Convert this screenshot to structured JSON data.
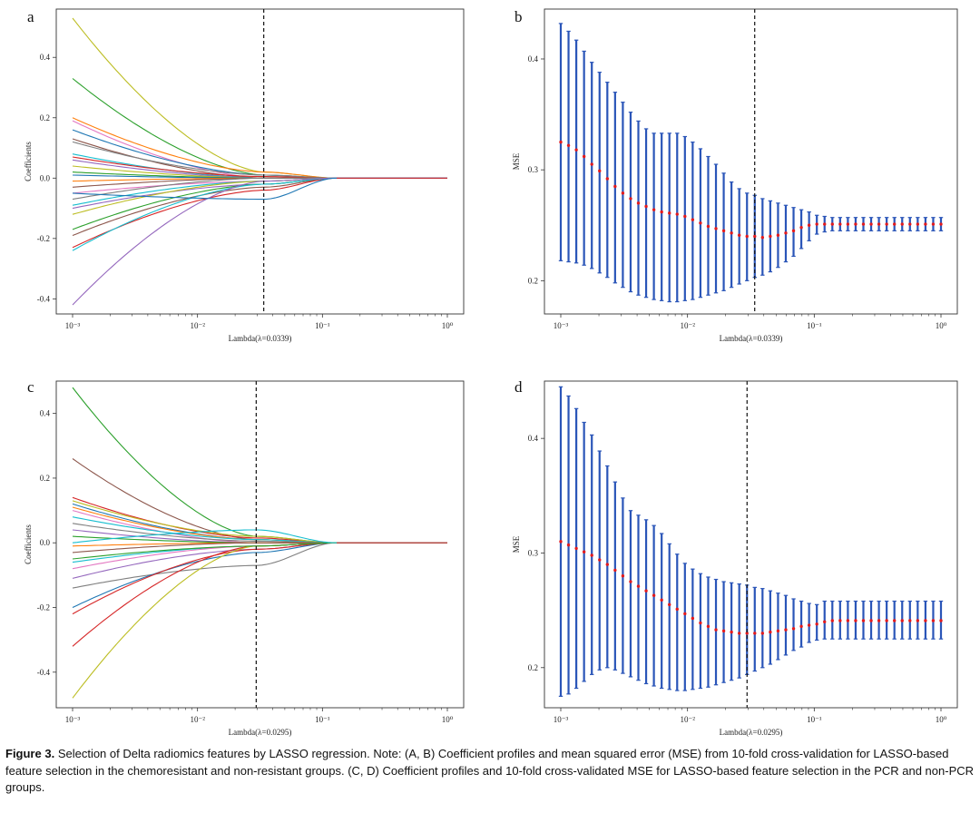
{
  "caption": {
    "label": "Figure 3.",
    "text": "Selection of Delta radiomics features by LASSO regression. Note: (A, B) Coefficient profiles and mean squared error (MSE) from 10-fold cross-validation for LASSO-based feature selection in the chemoresistant and non-resistant groups. (C, D) Coefficient profiles and 10-fold cross-validated MSE for LASSO-based feature selection in the PCR and non-PCR groups."
  },
  "chart_data": [
    {
      "panel": "a",
      "type": "line",
      "xlabel": "Lambda(λ=0.0339)",
      "ylabel": "Coefficients",
      "x_scale": "log",
      "xlim": [
        0.001,
        1
      ],
      "ylim": [
        -0.45,
        0.56
      ],
      "x_ticks": [
        0.001,
        0.01,
        0.1,
        1
      ],
      "x_tick_labels": [
        "10⁻³",
        "10⁻²",
        "10⁻¹",
        "10⁰"
      ],
      "y_ticks": [
        -0.4,
        -0.2,
        0.0,
        0.2,
        0.4
      ],
      "y_tick_labels": [
        "-0.4",
        "-0.2",
        "0.0",
        "0.2",
        "0.4"
      ],
      "selected_lambda": 0.0339,
      "series": [
        {
          "start": 0.53,
          "mid": 0.02,
          "color": "#bcbd22"
        },
        {
          "start": 0.33,
          "mid": 0.01,
          "color": "#2ca02c"
        },
        {
          "start": 0.2,
          "mid": 0.02,
          "color": "#ff7f0e"
        },
        {
          "start": 0.19,
          "mid": 0.0,
          "color": "#e377c2"
        },
        {
          "start": 0.16,
          "mid": 0.01,
          "color": "#1f77b4"
        },
        {
          "start": 0.13,
          "mid": 0.0,
          "color": "#8c564b"
        },
        {
          "start": 0.12,
          "mid": 0.01,
          "color": "#7f7f7f"
        },
        {
          "start": 0.08,
          "mid": 0.0,
          "color": "#17becf"
        },
        {
          "start": 0.07,
          "mid": 0.005,
          "color": "#d62728"
        },
        {
          "start": 0.06,
          "mid": 0.0,
          "color": "#9467bd"
        },
        {
          "start": 0.04,
          "mid": 0.0,
          "color": "#bcbd22"
        },
        {
          "start": 0.02,
          "mid": 0.0,
          "color": "#2ca02c"
        },
        {
          "start": 0.01,
          "mid": 0.0,
          "color": "#1f77b4"
        },
        {
          "start": -0.01,
          "mid": 0.0,
          "color": "#ff7f0e"
        },
        {
          "start": -0.03,
          "mid": 0.0,
          "color": "#8c564b"
        },
        {
          "start": -0.05,
          "mid": -0.01,
          "color": "#e377c2"
        },
        {
          "start": -0.07,
          "mid": 0.0,
          "color": "#7f7f7f"
        },
        {
          "start": -0.09,
          "mid": -0.01,
          "color": "#17becf"
        },
        {
          "start": -0.1,
          "mid": -0.02,
          "color": "#9467bd"
        },
        {
          "start": -0.12,
          "mid": -0.01,
          "color": "#bcbd22"
        },
        {
          "start": -0.17,
          "mid": -0.02,
          "color": "#2ca02c"
        },
        {
          "start": -0.19,
          "mid": -0.03,
          "color": "#8c564b"
        },
        {
          "start": -0.23,
          "mid": -0.04,
          "color": "#d62728"
        },
        {
          "start": -0.24,
          "mid": -0.02,
          "color": "#17becf"
        },
        {
          "start": -0.42,
          "mid": -0.01,
          "color": "#9467bd"
        },
        {
          "start": -0.05,
          "mid": -0.07,
          "color": "#1f77b4"
        }
      ]
    },
    {
      "panel": "b",
      "type": "scatter",
      "xlabel": "Lambda(λ=0.0339)",
      "ylabel": "MSE",
      "x_scale": "log",
      "xlim": [
        0.001,
        1
      ],
      "ylim": [
        0.17,
        0.445
      ],
      "x_ticks": [
        0.001,
        0.01,
        0.1,
        1
      ],
      "x_tick_labels": [
        "10⁻³",
        "10⁻²",
        "10⁻¹",
        "10⁰"
      ],
      "y_ticks": [
        0.2,
        0.3,
        0.4
      ],
      "y_tick_labels": [
        "0.2",
        "0.3",
        "0.4"
      ],
      "selected_lambda": 0.0339,
      "x_range": [
        0.001,
        1.0
      ],
      "mean": [
        0.325,
        0.322,
        0.318,
        0.312,
        0.305,
        0.299,
        0.292,
        0.285,
        0.279,
        0.274,
        0.27,
        0.267,
        0.264,
        0.262,
        0.261,
        0.26,
        0.258,
        0.255,
        0.252,
        0.249,
        0.247,
        0.245,
        0.243,
        0.241,
        0.24,
        0.24,
        0.239,
        0.24,
        0.241,
        0.243,
        0.245,
        0.248,
        0.25,
        0.251,
        0.251,
        0.251,
        0.251,
        0.251,
        0.251,
        0.251,
        0.251,
        0.251,
        0.251,
        0.251,
        0.251,
        0.251,
        0.251,
        0.251,
        0.251,
        0.251
      ],
      "upper": [
        0.432,
        0.425,
        0.417,
        0.407,
        0.397,
        0.388,
        0.379,
        0.37,
        0.361,
        0.352,
        0.344,
        0.337,
        0.333,
        0.333,
        0.333,
        0.333,
        0.33,
        0.325,
        0.319,
        0.312,
        0.305,
        0.297,
        0.289,
        0.283,
        0.279,
        0.277,
        0.274,
        0.272,
        0.27,
        0.268,
        0.266,
        0.264,
        0.262,
        0.259,
        0.258,
        0.257,
        0.257,
        0.257,
        0.257,
        0.257,
        0.257,
        0.257,
        0.257,
        0.257,
        0.257,
        0.257,
        0.257,
        0.257,
        0.257,
        0.257
      ],
      "lower": [
        0.218,
        0.217,
        0.216,
        0.214,
        0.211,
        0.207,
        0.203,
        0.198,
        0.194,
        0.19,
        0.187,
        0.185,
        0.183,
        0.182,
        0.181,
        0.181,
        0.182,
        0.183,
        0.185,
        0.187,
        0.189,
        0.191,
        0.194,
        0.197,
        0.2,
        0.203,
        0.205,
        0.208,
        0.212,
        0.217,
        0.222,
        0.229,
        0.236,
        0.242,
        0.244,
        0.245,
        0.245,
        0.245,
        0.245,
        0.245,
        0.245,
        0.245,
        0.245,
        0.245,
        0.245,
        0.245,
        0.245,
        0.245,
        0.245,
        0.245
      ]
    },
    {
      "panel": "c",
      "type": "line",
      "xlabel": "Lambda(λ=0.0295)",
      "ylabel": "Coefficients",
      "x_scale": "log",
      "xlim": [
        0.001,
        1
      ],
      "ylim": [
        -0.51,
        0.5
      ],
      "x_ticks": [
        0.001,
        0.01,
        0.1,
        1
      ],
      "x_tick_labels": [
        "10⁻³",
        "10⁻²",
        "10⁻¹",
        "10⁰"
      ],
      "y_ticks": [
        -0.4,
        -0.2,
        0.0,
        0.2,
        0.4
      ],
      "y_tick_labels": [
        "-0.4",
        "-0.2",
        "0.0",
        "0.2",
        "0.4"
      ],
      "selected_lambda": 0.0295,
      "series": [
        {
          "start": 0.48,
          "mid": 0.02,
          "color": "#2ca02c"
        },
        {
          "start": 0.26,
          "mid": 0.01,
          "color": "#8c564b"
        },
        {
          "start": 0.14,
          "mid": 0.015,
          "color": "#d62728"
        },
        {
          "start": 0.13,
          "mid": 0.02,
          "color": "#bcbd22"
        },
        {
          "start": 0.12,
          "mid": 0.01,
          "color": "#1f77b4"
        },
        {
          "start": 0.11,
          "mid": 0.01,
          "color": "#ff7f0e"
        },
        {
          "start": 0.1,
          "mid": 0.0,
          "color": "#e377c2"
        },
        {
          "start": 0.08,
          "mid": 0.01,
          "color": "#17becf"
        },
        {
          "start": 0.06,
          "mid": 0.005,
          "color": "#7f7f7f"
        },
        {
          "start": 0.04,
          "mid": 0.0,
          "color": "#9467bd"
        },
        {
          "start": 0.02,
          "mid": 0.0,
          "color": "#2ca02c"
        },
        {
          "start": -0.01,
          "mid": 0.0,
          "color": "#ff7f0e"
        },
        {
          "start": -0.03,
          "mid": 0.0,
          "color": "#8c564b"
        },
        {
          "start": -0.06,
          "mid": -0.01,
          "color": "#17becf"
        },
        {
          "start": -0.08,
          "mid": -0.01,
          "color": "#e377c2"
        },
        {
          "start": -0.11,
          "mid": -0.02,
          "color": "#9467bd"
        },
        {
          "start": -0.14,
          "mid": -0.07,
          "color": "#7f7f7f"
        },
        {
          "start": -0.2,
          "mid": -0.03,
          "color": "#1f77b4"
        },
        {
          "start": -0.22,
          "mid": -0.02,
          "color": "#d62728"
        },
        {
          "start": -0.32,
          "mid": -0.01,
          "color": "#d62728"
        },
        {
          "start": -0.48,
          "mid": -0.01,
          "color": "#bcbd22"
        },
        {
          "start": -0.05,
          "mid": -0.01,
          "color": "#2ca02c"
        },
        {
          "start": 0.0,
          "mid": 0.04,
          "color": "#17becf"
        }
      ]
    },
    {
      "panel": "d",
      "type": "scatter",
      "xlabel": "Lambda(λ=0.0295)",
      "ylabel": "MSE",
      "x_scale": "log",
      "xlim": [
        0.001,
        1
      ],
      "ylim": [
        0.165,
        0.45
      ],
      "x_ticks": [
        0.001,
        0.01,
        0.1,
        1
      ],
      "x_tick_labels": [
        "10⁻³",
        "10⁻²",
        "10⁻¹",
        "10⁰"
      ],
      "y_ticks": [
        0.2,
        0.3,
        0.4
      ],
      "y_tick_labels": [
        "0.2",
        "0.3",
        "0.4"
      ],
      "selected_lambda": 0.0295,
      "x_range": [
        0.001,
        1.0
      ],
      "mean": [
        0.31,
        0.307,
        0.304,
        0.301,
        0.298,
        0.294,
        0.29,
        0.285,
        0.28,
        0.275,
        0.271,
        0.267,
        0.263,
        0.259,
        0.255,
        0.251,
        0.247,
        0.243,
        0.239,
        0.236,
        0.233,
        0.232,
        0.231,
        0.23,
        0.23,
        0.23,
        0.23,
        0.231,
        0.232,
        0.233,
        0.234,
        0.236,
        0.237,
        0.238,
        0.24,
        0.241,
        0.241,
        0.241,
        0.241,
        0.241,
        0.241,
        0.241,
        0.241,
        0.241,
        0.241,
        0.241,
        0.241,
        0.241,
        0.241,
        0.241
      ],
      "upper": [
        0.445,
        0.437,
        0.426,
        0.414,
        0.403,
        0.389,
        0.376,
        0.362,
        0.348,
        0.337,
        0.333,
        0.329,
        0.324,
        0.317,
        0.308,
        0.299,
        0.291,
        0.286,
        0.282,
        0.279,
        0.277,
        0.275,
        0.274,
        0.273,
        0.272,
        0.27,
        0.269,
        0.267,
        0.265,
        0.263,
        0.26,
        0.258,
        0.256,
        0.255,
        0.258,
        0.258,
        0.258,
        0.258,
        0.258,
        0.258,
        0.258,
        0.258,
        0.258,
        0.258,
        0.258,
        0.258,
        0.258,
        0.258,
        0.258,
        0.258
      ],
      "lower": [
        0.175,
        0.177,
        0.182,
        0.188,
        0.194,
        0.198,
        0.2,
        0.198,
        0.195,
        0.192,
        0.189,
        0.186,
        0.184,
        0.182,
        0.181,
        0.18,
        0.18,
        0.181,
        0.182,
        0.183,
        0.185,
        0.187,
        0.189,
        0.191,
        0.194,
        0.197,
        0.2,
        0.203,
        0.207,
        0.211,
        0.215,
        0.218,
        0.222,
        0.224,
        0.225,
        0.225,
        0.225,
        0.225,
        0.225,
        0.225,
        0.225,
        0.225,
        0.225,
        0.225,
        0.225,
        0.225,
        0.225,
        0.225,
        0.225,
        0.225
      ]
    }
  ]
}
